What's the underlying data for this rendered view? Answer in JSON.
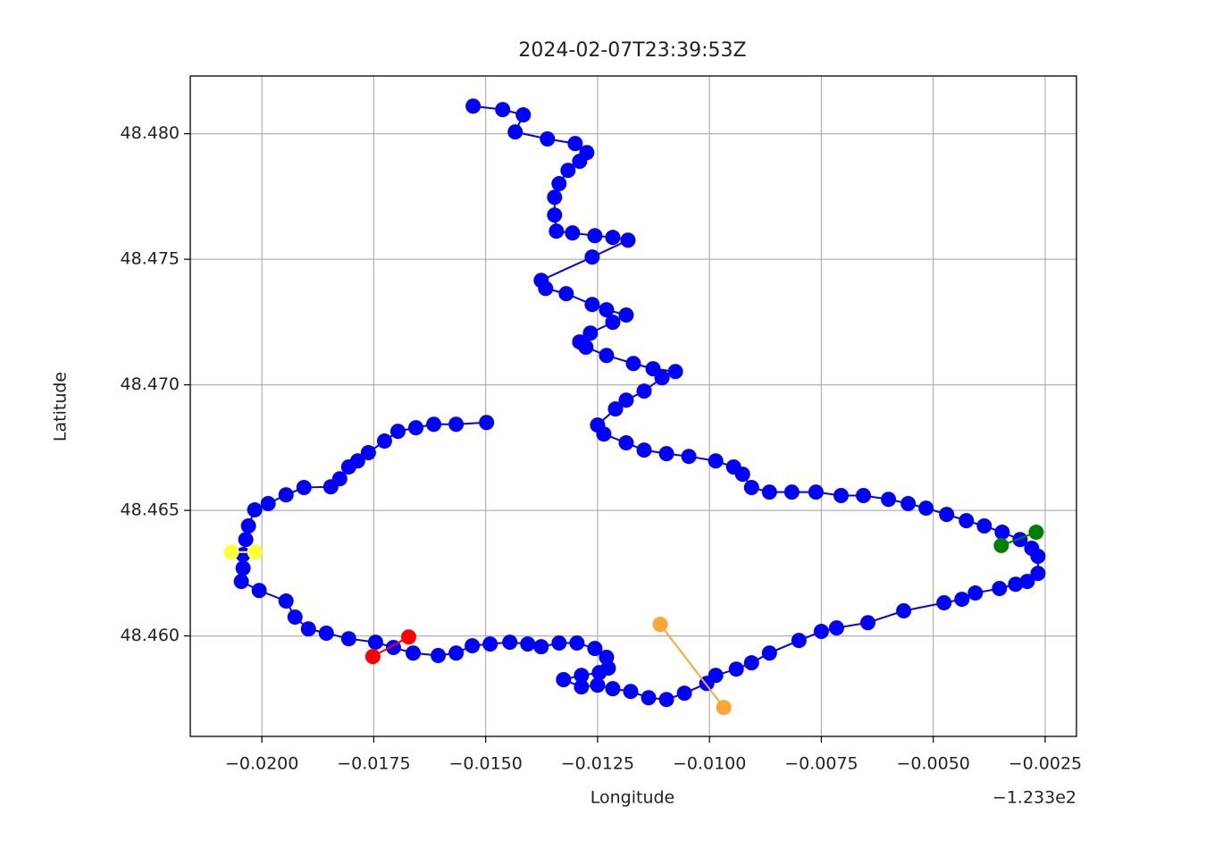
{
  "chart_data": {
    "type": "line",
    "title": "2024-02-07T23:39:53Z",
    "x_label": "Longitude",
    "y_label": "Latitude",
    "x_offset_label": "−1.233e2",
    "xlim": [
      -0.0216,
      -0.0018
    ],
    "ylim": [
      48.456,
      48.4823
    ],
    "grid": true,
    "xticks": [
      {
        "value": -0.02,
        "label": "−0.0200"
      },
      {
        "value": -0.0175,
        "label": "−0.0175"
      },
      {
        "value": -0.015,
        "label": "−0.0150"
      },
      {
        "value": -0.0125,
        "label": "−0.0125"
      },
      {
        "value": -0.01,
        "label": "−0.0100"
      },
      {
        "value": -0.0075,
        "label": "−0.0075"
      },
      {
        "value": -0.005,
        "label": "−0.0050"
      },
      {
        "value": -0.0025,
        "label": "−0.0025"
      }
    ],
    "yticks": [
      {
        "value": 48.46,
        "label": "48.460"
      },
      {
        "value": 48.465,
        "label": "48.465"
      },
      {
        "value": 48.47,
        "label": "48.470"
      },
      {
        "value": 48.475,
        "label": "48.475"
      },
      {
        "value": 48.48,
        "label": "48.480"
      }
    ],
    "series": [
      {
        "color": "#0000ff",
        "x": [
          -0.01528,
          -0.01462,
          -0.01416,
          -0.01434,
          -0.01362,
          -0.013,
          -0.01274,
          -0.0129,
          -0.01316,
          -0.01336,
          -0.01346,
          -0.01346,
          -0.01342,
          -0.01306,
          -0.01256,
          -0.01216,
          -0.01182,
          -0.01262,
          -0.01376,
          -0.01366,
          -0.0132,
          -0.01262,
          -0.0123,
          -0.01186,
          -0.01216,
          -0.01266,
          -0.0129,
          -0.01276,
          -0.0123,
          -0.0117,
          -0.01126,
          -0.01076,
          -0.01106,
          -0.01146,
          -0.01186,
          -0.0121,
          -0.0125,
          -0.01236,
          -0.01186,
          -0.01146,
          -0.01096,
          -0.01046,
          -0.00986,
          -0.00946,
          -0.00926,
          -0.00906,
          -0.00866,
          -0.00816,
          -0.00762,
          -0.00706,
          -0.00656,
          -0.006,
          -0.00556,
          -0.00516,
          -0.0047,
          -0.00426,
          -0.00386,
          -0.00346,
          -0.00306,
          -0.0028,
          -0.00266,
          -0.00266,
          -0.0029,
          -0.00316,
          -0.00352,
          -0.00406,
          -0.00436,
          -0.00476,
          -0.00566,
          -0.00646,
          -0.00716,
          -0.0075,
          -0.008,
          -0.00866,
          -0.00906,
          -0.0094,
          -0.00986,
          -0.01006,
          -0.01056,
          -0.01096,
          -0.01136,
          -0.01176,
          -0.01216,
          -0.0125,
          -0.01286,
          -0.01326,
          -0.01286,
          -0.01246,
          -0.01226,
          -0.0123,
          -0.01256,
          -0.01296,
          -0.01336,
          -0.01376,
          -0.01406,
          -0.01446,
          -0.0149,
          -0.0153,
          -0.01566,
          -0.01606,
          -0.01662,
          -0.01706,
          -0.01746,
          -0.01806,
          -0.01856,
          -0.01896,
          -0.01926,
          -0.01946,
          -0.02006,
          -0.02046,
          -0.02042,
          -0.02042,
          -0.02036,
          -0.0203,
          -0.02016,
          -0.01986,
          -0.01946,
          -0.01906,
          -0.01846,
          -0.01826,
          -0.01806,
          -0.01786,
          -0.01762,
          -0.01726,
          -0.01696,
          -0.01656,
          -0.01616,
          -0.01566,
          -0.01498
        ],
        "y": [
          48.4811,
          48.48096,
          48.48075,
          48.48007,
          48.47979,
          48.47961,
          48.47925,
          48.4789,
          48.47854,
          48.47801,
          48.47747,
          48.47676,
          48.47612,
          48.47605,
          48.47594,
          48.47587,
          48.47576,
          48.47509,
          48.47416,
          48.47384,
          48.47363,
          48.4732,
          48.47299,
          48.47278,
          48.47249,
          48.47206,
          48.47171,
          48.4715,
          48.47117,
          48.47085,
          48.47064,
          48.47053,
          48.47028,
          48.46975,
          48.46939,
          48.46904,
          48.4684,
          48.46804,
          48.46769,
          48.4674,
          48.46726,
          48.46715,
          48.46697,
          48.46673,
          48.46644,
          48.46591,
          48.46573,
          48.46573,
          48.46573,
          48.46559,
          48.46559,
          48.46544,
          48.46527,
          48.46509,
          48.46484,
          48.46459,
          48.46438,
          48.46413,
          48.46384,
          48.46349,
          48.46317,
          48.46249,
          48.46217,
          48.46206,
          48.46189,
          48.46171,
          48.46146,
          48.46132,
          48.461,
          48.46053,
          48.46032,
          48.46018,
          48.45982,
          48.45932,
          48.45893,
          48.45868,
          48.45843,
          48.45811,
          48.45772,
          48.45747,
          48.45754,
          48.45779,
          48.4579,
          48.45804,
          48.45797,
          48.45826,
          48.45843,
          48.45854,
          48.45872,
          48.45915,
          48.4595,
          48.45972,
          48.45972,
          48.45957,
          48.45968,
          48.45975,
          48.45968,
          48.45961,
          48.45932,
          48.45922,
          48.45932,
          48.45954,
          48.45975,
          48.45989,
          48.46011,
          48.46028,
          48.46075,
          48.46139,
          48.46181,
          48.46217,
          48.4627,
          48.46324,
          48.46384,
          48.46438,
          48.46502,
          48.46527,
          48.46562,
          48.46591,
          48.46594,
          48.46626,
          48.46673,
          48.46697,
          48.4673,
          48.46776,
          48.46815,
          48.46829,
          48.46843,
          48.46843,
          48.4685
        ]
      },
      {
        "color": "#ff0000",
        "x": [
          -0.01752,
          -0.01672
        ],
        "y": [
          48.45918,
          48.45996
        ]
      },
      {
        "color": "#ffff33",
        "x": [
          -0.02068,
          -0.02016
        ],
        "y": [
          48.46334,
          48.46334
        ]
      },
      {
        "color": "#008000",
        "x": [
          -0.00348,
          -0.0027
        ],
        "y": [
          48.4636,
          48.46413
        ]
      },
      {
        "color": "#ffa533",
        "x": [
          -0.0111,
          -0.00968
        ],
        "y": [
          48.46046,
          48.45715
        ]
      }
    ]
  }
}
